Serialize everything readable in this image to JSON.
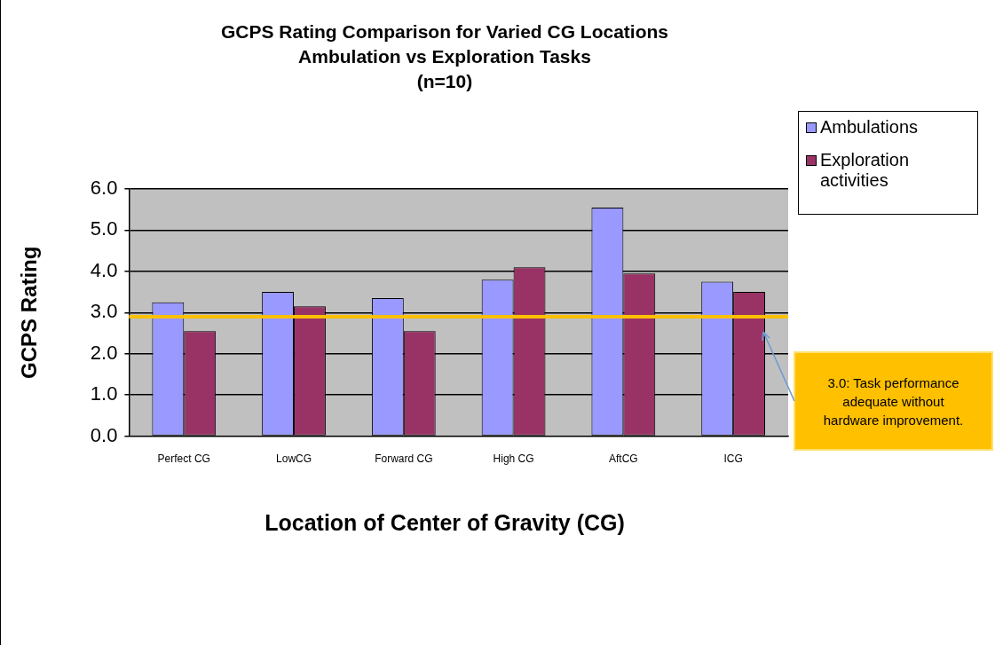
{
  "chart_data": {
    "type": "bar",
    "title": "GCPS Rating Comparison for Varied CG Locations\nAmbulation vs Exploration Tasks",
    "subtitle": "(n=10)",
    "xlabel": "Location of Center of Gravity (CG)",
    "ylabel": "GCPS Rating",
    "categories": [
      "Perfect CG",
      "LowCG",
      "Forward CG",
      "High CG",
      "AftCG",
      "ICG"
    ],
    "series": [
      {
        "name": "Ambulations",
        "color": "#9999ff",
        "values": [
          3.25,
          3.5,
          3.35,
          3.8,
          5.55,
          3.75
        ]
      },
      {
        "name": "Exploration activities",
        "color": "#993366",
        "values": [
          2.55,
          3.15,
          2.55,
          4.1,
          3.95,
          3.5
        ]
      }
    ],
    "ylim": [
      0,
      6
    ],
    "yticks": [
      {
        "value": 0,
        "label": "0.0"
      },
      {
        "value": 1,
        "label": "1.0"
      },
      {
        "value": 2,
        "label": "2.0"
      },
      {
        "value": 3,
        "label": "3.0"
      },
      {
        "value": 4,
        "label": "4.0"
      },
      {
        "value": 5,
        "label": "5.0"
      },
      {
        "value": 6,
        "label": "6.0"
      }
    ],
    "ref_lines": [
      {
        "axis": "y",
        "value": 2.9,
        "color": "#ffc000"
      }
    ],
    "annotations": [
      "3.0: Task performance adequate without hardware improvement."
    ],
    "grid": "y",
    "legend": "top right"
  }
}
